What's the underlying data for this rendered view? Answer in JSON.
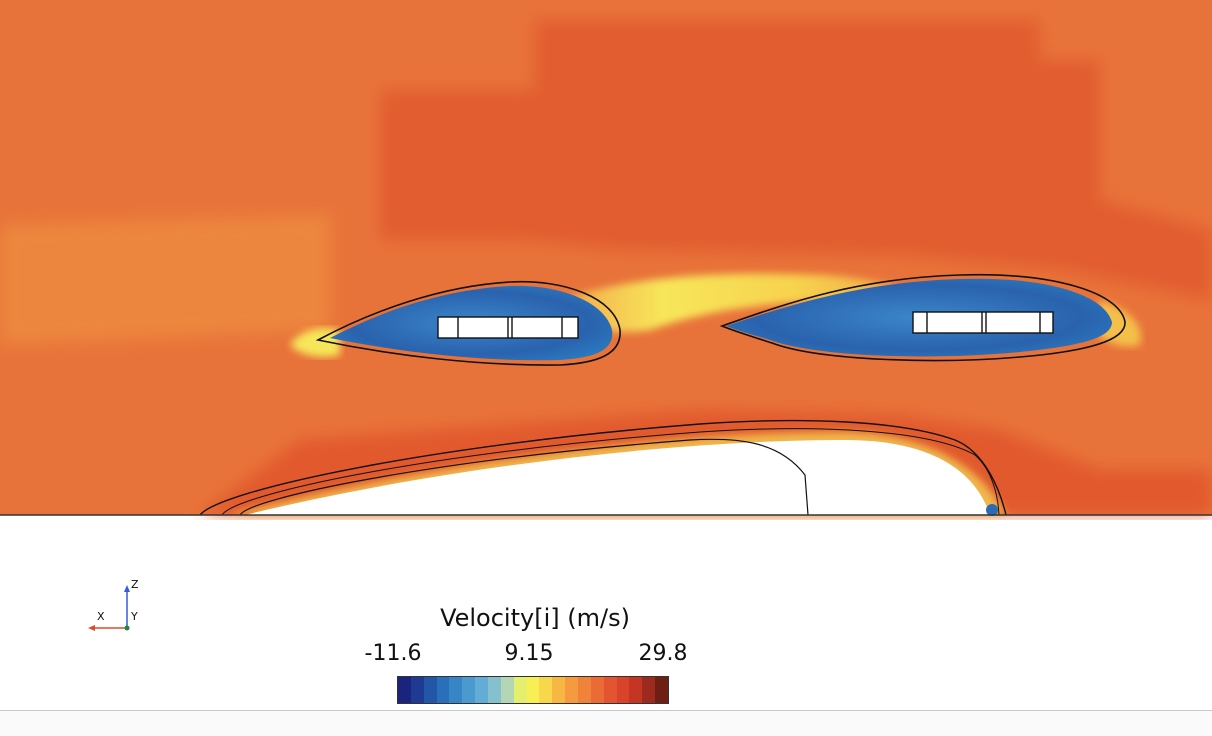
{
  "legend": {
    "title": "Velocity[i] (m/s)",
    "min_label": "-11.6",
    "mid_label": "9.15",
    "max_label": "29.8",
    "colors": [
      "#1a237e",
      "#1f3a93",
      "#2456a8",
      "#2a6fba",
      "#3686c6",
      "#4a9ad0",
      "#62acd6",
      "#86c0cf",
      "#b3d6b4",
      "#e6ee6e",
      "#f7ef54",
      "#f8d84a",
      "#f7b745",
      "#f59a3e",
      "#f0823a",
      "#ea6b35",
      "#e35530",
      "#d8432a",
      "#c53524",
      "#9c2a1e",
      "#6f1e14"
    ]
  },
  "triad": {
    "x_label": "X",
    "y_label": "Y",
    "z_label": "Z"
  },
  "field_colors": {
    "background": "#e8733a",
    "fast": "#e0582f",
    "slow_core": "#2c6ab4",
    "wake": "#f6e857",
    "edge": "#ef9d42"
  }
}
